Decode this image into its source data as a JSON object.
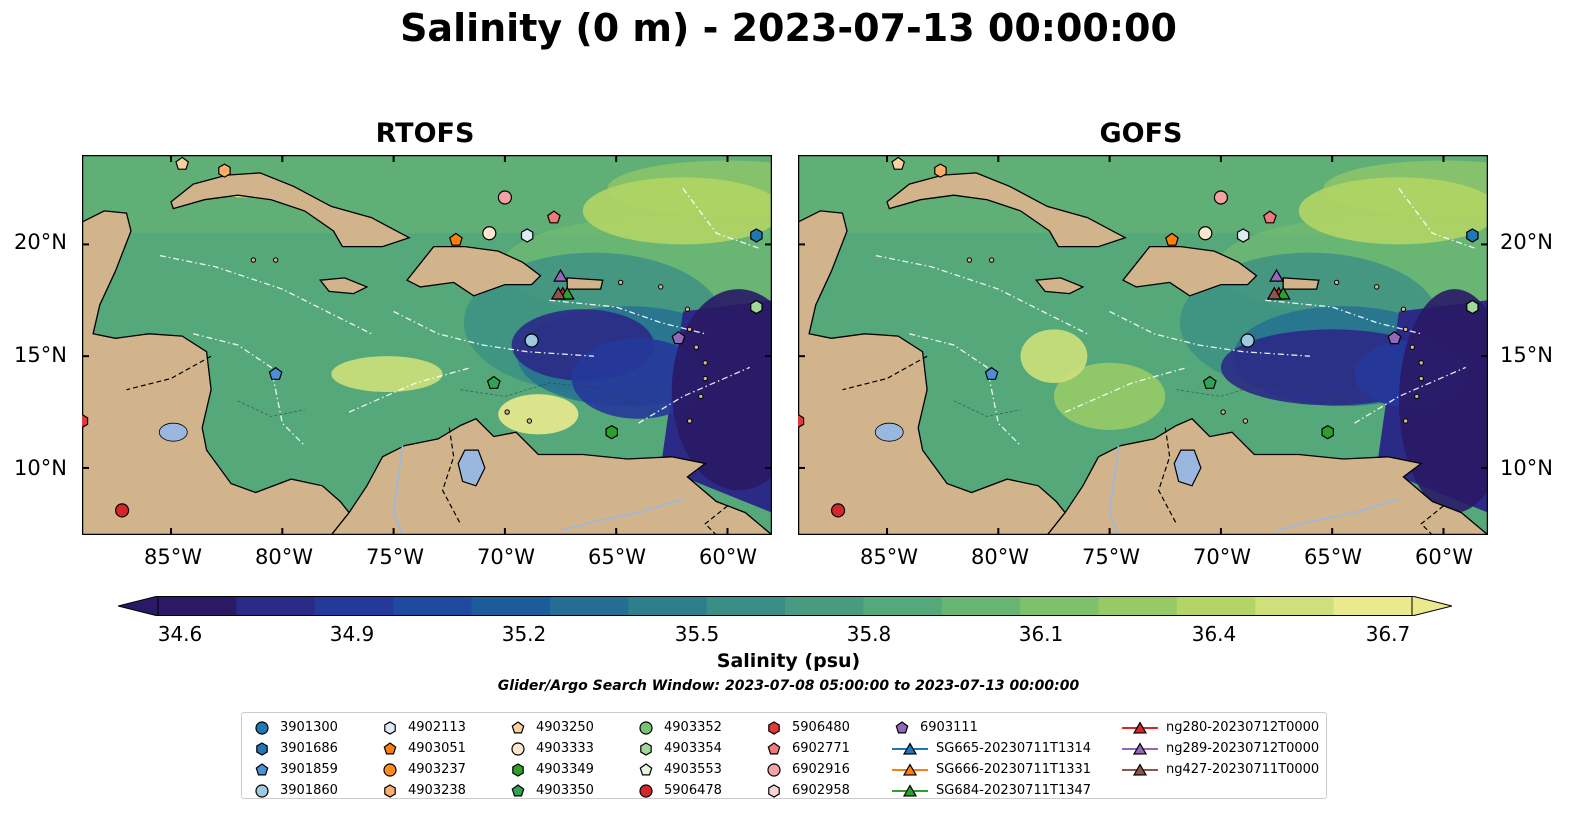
{
  "title": "Salinity (0 m) - 2023-07-13 00:00:00",
  "panels": [
    {
      "title": "RTOFS",
      "variant": "rtofs"
    },
    {
      "title": "GOFS",
      "variant": "gofs"
    }
  ],
  "lat_labels": [
    "20°N",
    "15°N",
    "10°N"
  ],
  "lon_labels": [
    "85°W",
    "80°W",
    "75°W",
    "70°W",
    "65°W",
    "60°W"
  ],
  "colorbar": {
    "label": "Salinity (psu)",
    "ticks": [
      "34.6",
      "34.9",
      "35.2",
      "35.5",
      "35.8",
      "36.1",
      "36.4",
      "36.7"
    ],
    "colors": [
      "#2a1a66",
      "#2b2a86",
      "#25399a",
      "#1f4a9d",
      "#1c5c9a",
      "#236e92",
      "#2e7f8b",
      "#3a8e85",
      "#479b80",
      "#55a87a",
      "#67b573",
      "#7dc16c",
      "#97ca67",
      "#b2d565",
      "#cde07a",
      "#eae98d"
    ]
  },
  "search_window": "Glider/Argo Search Window: 2023-07-08 05:00:00 to 2023-07-13 00:00:00",
  "legend": [
    {
      "label": "3901300",
      "shape": "circle",
      "color": "#1f77b4"
    },
    {
      "label": "3901686",
      "shape": "hexagon",
      "color": "#1f77b4"
    },
    {
      "label": "3901859",
      "shape": "pentagon",
      "color": "#4a90d9"
    },
    {
      "label": "3901860",
      "shape": "circle",
      "color": "#9ecae1"
    },
    {
      "label": "4902113",
      "shape": "hexagon",
      "color": "#deebf7"
    },
    {
      "label": "4903051",
      "shape": "pentagon",
      "color": "#ff7f0e"
    },
    {
      "label": "4903237",
      "shape": "circle",
      "color": "#ff8c1a"
    },
    {
      "label": "4903238",
      "shape": "hexagon",
      "color": "#fdae6b"
    },
    {
      "label": "4903250",
      "shape": "pentagon",
      "color": "#fdd0a2"
    },
    {
      "label": "4903333",
      "shape": "circle",
      "color": "#fee6ce"
    },
    {
      "label": "4903349",
      "shape": "hexagon",
      "color": "#2ca02c"
    },
    {
      "label": "4903350",
      "shape": "pentagon",
      "color": "#31a354"
    },
    {
      "label": "4903352",
      "shape": "circle",
      "color": "#74c476"
    },
    {
      "label": "4903354",
      "shape": "hexagon",
      "color": "#a1d99b"
    },
    {
      "label": "4903553",
      "shape": "pentagon",
      "color": "#e5f5e0"
    },
    {
      "label": "5906478",
      "shape": "circle",
      "color": "#d62728"
    },
    {
      "label": "5906480",
      "shape": "hexagon",
      "color": "#e03a3a"
    },
    {
      "label": "6902771",
      "shape": "pentagon",
      "color": "#f07a7a"
    },
    {
      "label": "6902916",
      "shape": "circle",
      "color": "#f4a3a3"
    },
    {
      "label": "6902958",
      "shape": "hexagon",
      "color": "#fcd5d5"
    },
    {
      "label": "6903111",
      "shape": "pentagon",
      "color": "#9467bd"
    },
    {
      "label": "SG665-20230711T1314",
      "shape": "triangle-line",
      "color": "#1f77b4"
    },
    {
      "label": "SG666-20230711T1331",
      "shape": "triangle-line",
      "color": "#ff7f0e"
    },
    {
      "label": "SG684-20230711T1347",
      "shape": "triangle-line",
      "color": "#2ca02c"
    },
    {
      "label": "ng280-20230712T0000",
      "shape": "triangle-line",
      "color": "#d62728"
    },
    {
      "label": "ng289-20230712T0000",
      "shape": "triangle-line",
      "color": "#9467bd"
    },
    {
      "label": "ng427-20230711T0000",
      "shape": "triangle-line",
      "color": "#8c564b"
    }
  ],
  "markers": [
    {
      "id": "4903250",
      "lon": -84.5,
      "lat": 23.6
    },
    {
      "id": "4903238",
      "lon": -82.6,
      "lat": 23.3
    },
    {
      "id": "6902916",
      "lon": -70.0,
      "lat": 22.1
    },
    {
      "id": "6902771",
      "lon": -67.8,
      "lat": 21.2
    },
    {
      "id": "4903333",
      "lon": -70.7,
      "lat": 20.5
    },
    {
      "id": "4902113",
      "lon": -69.0,
      "lat": 20.4
    },
    {
      "id": "4903051",
      "lon": -72.2,
      "lat": 20.2
    },
    {
      "id": "3901686",
      "lon": -58.7,
      "lat": 20.4
    },
    {
      "id": "ng289-20230712T0000",
      "lon": -67.5,
      "lat": 18.6
    },
    {
      "id": "ng280-20230712T0000",
      "lon": -67.4,
      "lat": 17.8
    },
    {
      "id": "SG684-20230711T1347",
      "lon": -67.2,
      "lat": 17.8
    },
    {
      "id": "ng427-20230711T0000",
      "lon": -67.6,
      "lat": 17.8
    },
    {
      "id": "4903354",
      "lon": -58.7,
      "lat": 17.2
    },
    {
      "id": "3901860",
      "lon": -68.8,
      "lat": 15.7
    },
    {
      "id": "6903111",
      "lon": -62.2,
      "lat": 15.8
    },
    {
      "id": "3901859",
      "lon": -80.3,
      "lat": 14.2
    },
    {
      "id": "4903350",
      "lon": -70.5,
      "lat": 13.8
    },
    {
      "id": "4903349",
      "lon": -65.2,
      "lat": 11.6
    },
    {
      "id": "5906480",
      "lon": -89.0,
      "lat": 12.1
    },
    {
      "id": "5906478",
      "lon": -87.2,
      "lat": 8.1
    }
  ]
}
